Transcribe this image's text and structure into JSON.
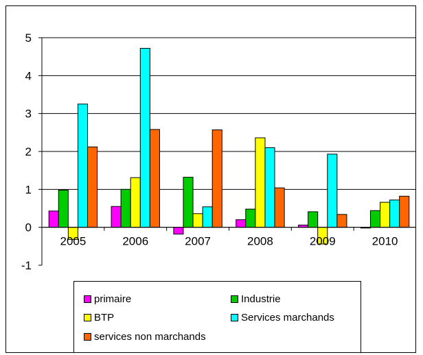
{
  "chart_data": {
    "type": "bar",
    "categories": [
      "2005",
      "2006",
      "2007",
      "2008",
      "2009",
      "2010"
    ],
    "series": [
      {
        "name": "primaire",
        "color": "#ff00ff",
        "values": [
          0.43,
          0.55,
          -0.18,
          0.2,
          0.06,
          -0.02
        ]
      },
      {
        "name": "Industrie",
        "color": "#00cc00",
        "values": [
          0.98,
          1.0,
          1.32,
          0.48,
          0.41,
          0.44
        ]
      },
      {
        "name": "BTP",
        "color": "#ffff00",
        "values": [
          -0.32,
          1.31,
          0.36,
          2.36,
          -0.44,
          0.66
        ]
      },
      {
        "name": "Services marchands",
        "color": "#00ffff",
        "values": [
          3.25,
          4.72,
          0.54,
          2.1,
          1.93,
          0.72
        ]
      },
      {
        "name": "services non marchands",
        "color": "#ff6600",
        "values": [
          2.12,
          2.58,
          2.57,
          1.04,
          0.34,
          0.82
        ]
      }
    ],
    "ylim": [
      -1,
      5
    ],
    "yticks": [
      "5",
      "4",
      "3",
      "2",
      "1",
      "0",
      "-1"
    ],
    "grid": true,
    "legend_position": "bottom"
  }
}
